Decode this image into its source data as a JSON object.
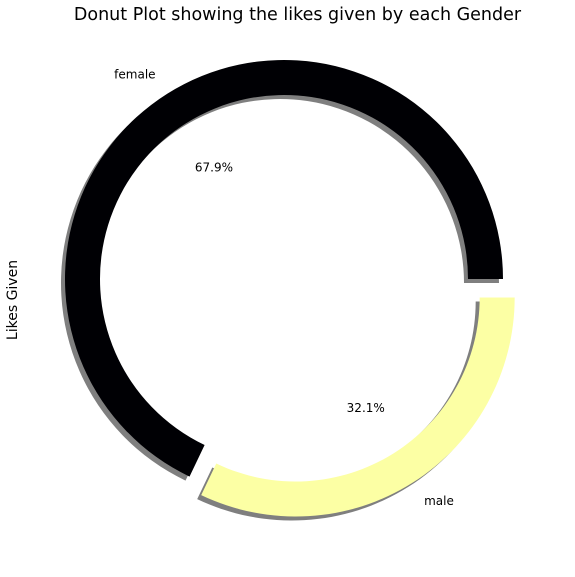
{
  "chart_data": {
    "type": "pie",
    "donut": true,
    "title": "Donut Plot showing the likes given by each Gender",
    "ylabel": "Likes Given",
    "slices": [
      {
        "label": "female",
        "percent": 67.9,
        "pct_text": "67.9%",
        "color": "#000004",
        "exploded": false
      },
      {
        "label": "male",
        "percent": 32.1,
        "pct_text": "32.1%",
        "color": "#fcffa4",
        "exploded": true
      }
    ],
    "start_angle_deg": 0,
    "counterclock": true,
    "shadow": true,
    "colormap": "inferno"
  }
}
